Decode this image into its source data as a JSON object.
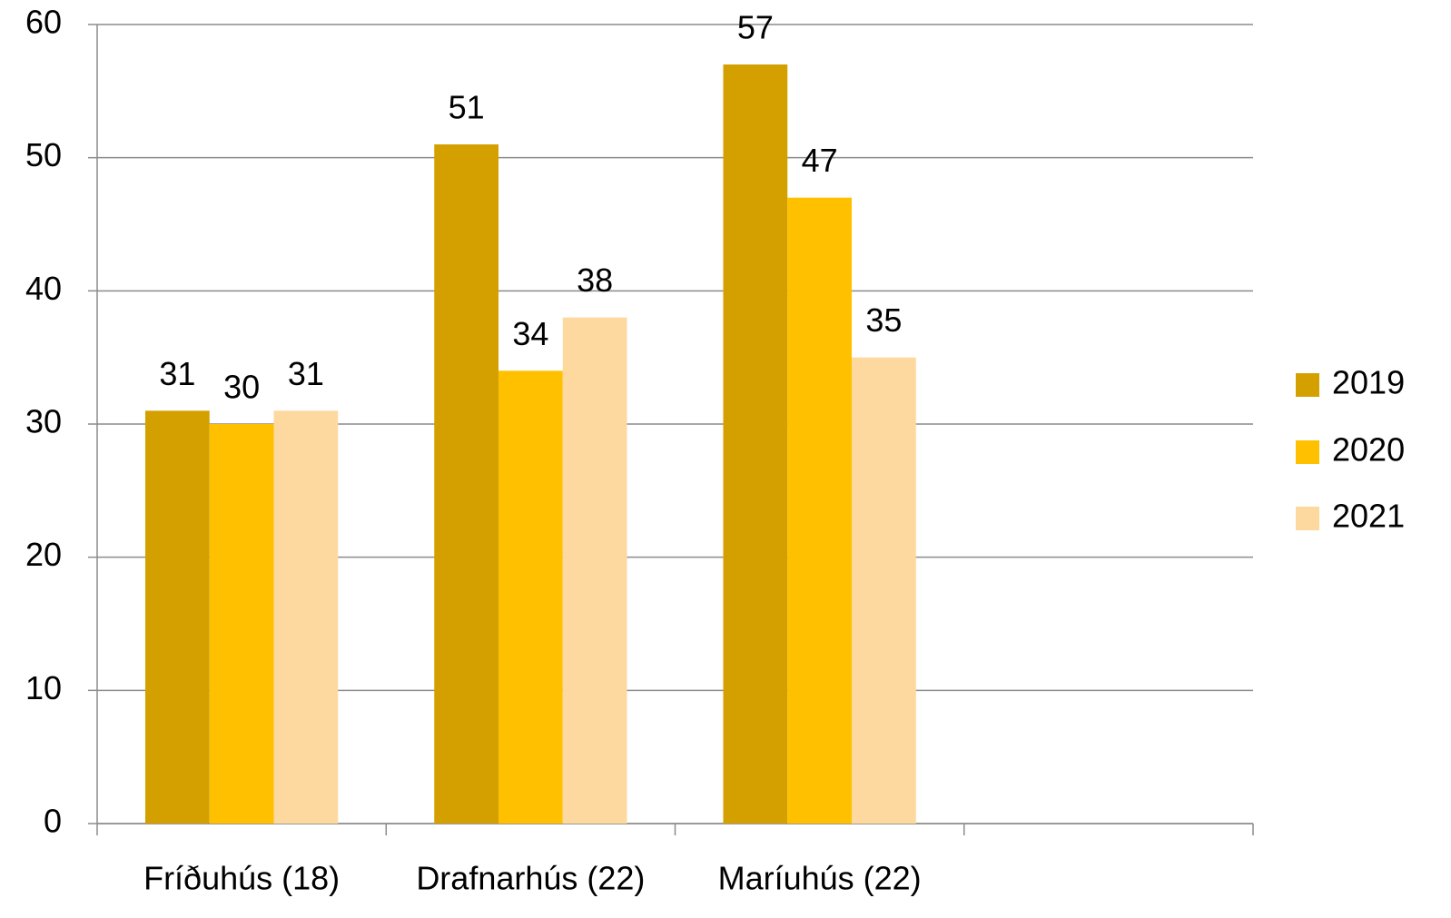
{
  "chart_data": {
    "type": "bar",
    "categories": [
      "Fríðuhús (18)",
      "Drafnarhús (22)",
      "Maríuhús (22)",
      null
    ],
    "series": [
      {
        "name": "2019",
        "color": "#d4a000",
        "values": [
          31,
          51,
          57,
          null
        ]
      },
      {
        "name": "2020",
        "color": "#ffc000",
        "values": [
          30,
          34,
          47,
          null
        ]
      },
      {
        "name": "2021",
        "color": "#fdd9a0",
        "values": [
          31,
          38,
          35,
          null
        ]
      }
    ],
    "ylim": [
      0,
      60
    ],
    "yticks": [
      0,
      10,
      20,
      30,
      40,
      50,
      60
    ],
    "grid": true,
    "legend": "right"
  }
}
